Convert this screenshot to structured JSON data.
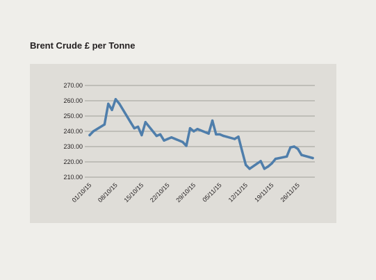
{
  "chart_data": {
    "type": "line",
    "title": "Brent Crude £ per Tonne",
    "xlabel": "",
    "ylabel": "",
    "ylim": [
      210,
      270
    ],
    "yticks": [
      "210.00",
      "220.00",
      "230.00",
      "240.00",
      "250.00",
      "260.00",
      "270.00"
    ],
    "xticks": [
      "01/10/15",
      "08/10/15",
      "15/10/15",
      "22/10/15",
      "29/10/15",
      "05/11/15",
      "12/11/15",
      "19/11/15",
      "26/11/15"
    ],
    "grid": true,
    "legend": "none",
    "line_color": "#4f7eab",
    "series": [
      {
        "x": [
          "01/10/15",
          "02/10/15",
          "05/10/15",
          "06/10/15",
          "07/10/15",
          "08/10/15",
          "09/10/15",
          "12/10/15",
          "13/10/15",
          "14/10/15",
          "15/10/15",
          "16/10/15",
          "19/10/15",
          "20/10/15",
          "21/10/15",
          "22/10/15",
          "23/10/15",
          "26/10/15",
          "27/10/15",
          "28/10/15",
          "29/10/15",
          "30/10/15",
          "02/11/15",
          "03/11/15",
          "04/11/15",
          "05/11/15",
          "06/11/15",
          "09/11/15",
          "10/11/15",
          "11/11/15",
          "12/11/15",
          "13/11/15",
          "16/11/15",
          "17/11/15",
          "18/11/15",
          "19/11/15",
          "20/11/15",
          "23/11/15",
          "24/11/15",
          "25/11/15",
          "26/11/15",
          "27/11/15",
          "30/11/15"
        ],
        "values": [
          237.5,
          240,
          244.5,
          258,
          254,
          261,
          258,
          246,
          242,
          243,
          237.5,
          246,
          237,
          238,
          234,
          235,
          236,
          233,
          230.5,
          242,
          240,
          241.5,
          238.5,
          247,
          238,
          238,
          237,
          235,
          236.5,
          227,
          218,
          215.5,
          220.5,
          215.5,
          217,
          219,
          222,
          223.5,
          229.5,
          230,
          228.5,
          224.5,
          222.5
        ]
      }
    ]
  }
}
